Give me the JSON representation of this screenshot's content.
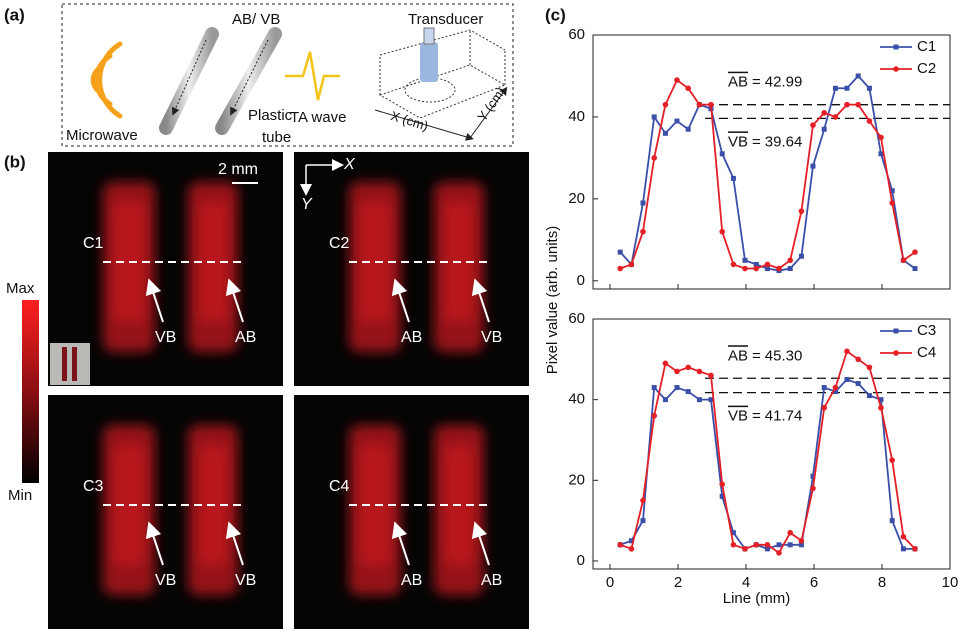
{
  "panel_labels": [
    "(a)",
    "(b)",
    "(c)"
  ],
  "schematic": {
    "ab_vb": "AB/ VB",
    "transducer": "Transducer",
    "microwave": "Microwave",
    "plastic_tube": [
      "Plastic",
      "tube"
    ],
    "ta_wave": "TA wave",
    "x_axis": "X (cm)",
    "y_axis": "Y (cm)"
  },
  "images": {
    "scale_bar": "2 mm",
    "axes": {
      "x": "X",
      "y": "Y"
    },
    "colorbar": {
      "max": "Max",
      "min": "Min"
    },
    "panels": [
      {
        "label": "C1",
        "markers": [
          "VB",
          "AB"
        ]
      },
      {
        "label": "C2",
        "markers": [
          "AB",
          "VB"
        ]
      },
      {
        "label": "C3",
        "markers": [
          "VB",
          "VB"
        ]
      },
      {
        "label": "C4",
        "markers": [
          "AB",
          "AB"
        ]
      }
    ]
  },
  "chart_data": [
    {
      "type": "line",
      "ylabel": "Pixel value (arb. units)",
      "x": [
        0.3,
        0.63,
        0.97,
        1.3,
        1.63,
        1.97,
        2.3,
        2.63,
        2.97,
        3.3,
        3.63,
        3.97,
        4.3,
        4.63,
        4.97,
        5.3,
        5.63,
        5.97,
        6.3,
        6.63,
        6.97,
        7.3,
        7.63,
        7.97,
        8.3,
        8.63,
        8.97
      ],
      "series": [
        {
          "name": "C1",
          "color": "#3b4fa8",
          "marker": "square",
          "values": [
            7,
            4,
            19,
            40,
            36,
            39,
            37,
            43,
            42,
            31,
            25,
            5,
            4,
            3,
            2.5,
            3,
            6,
            28,
            37,
            47,
            47,
            50,
            47,
            31,
            22,
            5,
            3
          ]
        },
        {
          "name": "C2",
          "color": "#e41f26",
          "marker": "circle",
          "values": [
            3,
            4,
            12,
            30,
            43,
            49,
            47,
            43,
            43,
            12,
            4,
            3,
            3,
            4,
            3,
            5,
            17,
            38,
            41,
            40,
            43,
            43,
            39,
            35,
            19,
            5,
            7
          ]
        }
      ],
      "xlim": [
        -0.5,
        10
      ],
      "xticks": [
        0,
        2,
        4,
        6,
        8,
        10
      ],
      "show_xtick_labels": false,
      "ylim": [
        -2,
        60
      ],
      "yticks": [
        0,
        20,
        40,
        60
      ],
      "reference_lines": [
        {
          "name": "AB",
          "relation": "=",
          "value": 42.99
        },
        {
          "name": "VB",
          "relation": "=",
          "value": 39.64
        }
      ]
    },
    {
      "type": "line",
      "xlabel": "Line (mm)",
      "x": [
        0.3,
        0.63,
        0.97,
        1.3,
        1.63,
        1.97,
        2.3,
        2.63,
        2.97,
        3.3,
        3.63,
        3.97,
        4.3,
        4.63,
        4.97,
        5.3,
        5.63,
        5.97,
        6.3,
        6.63,
        6.97,
        7.3,
        7.63,
        7.97,
        8.3,
        8.63,
        8.97
      ],
      "series": [
        {
          "name": "C3",
          "color": "#3b4fa8",
          "marker": "square",
          "values": [
            4,
            5,
            10,
            43,
            40,
            43,
            42,
            40,
            40,
            16,
            7,
            3,
            4,
            3,
            4,
            4,
            4,
            21,
            43,
            42,
            45,
            44,
            41,
            40,
            10,
            3,
            3
          ]
        },
        {
          "name": "C4",
          "color": "#e41f26",
          "marker": "circle",
          "values": [
            4,
            3,
            15,
            36,
            49,
            47,
            48,
            47,
            46,
            19,
            4,
            3,
            4,
            4,
            2,
            7,
            5,
            18,
            38,
            43,
            52,
            50,
            48,
            38,
            25,
            6,
            3
          ]
        }
      ],
      "xlim": [
        -0.5,
        10
      ],
      "xticks": [
        0,
        2,
        4,
        6,
        8,
        10
      ],
      "show_xtick_labels": true,
      "ylim": [
        -2,
        60
      ],
      "yticks": [
        0,
        20,
        40,
        60
      ],
      "reference_lines": [
        {
          "name": "AB",
          "relation": "=",
          "value": {
            "value": 45.3,
            "label": "45.30"
          }
        },
        {
          "name": "VB",
          "relation": "=",
          "value": 41.74
        }
      ]
    }
  ]
}
